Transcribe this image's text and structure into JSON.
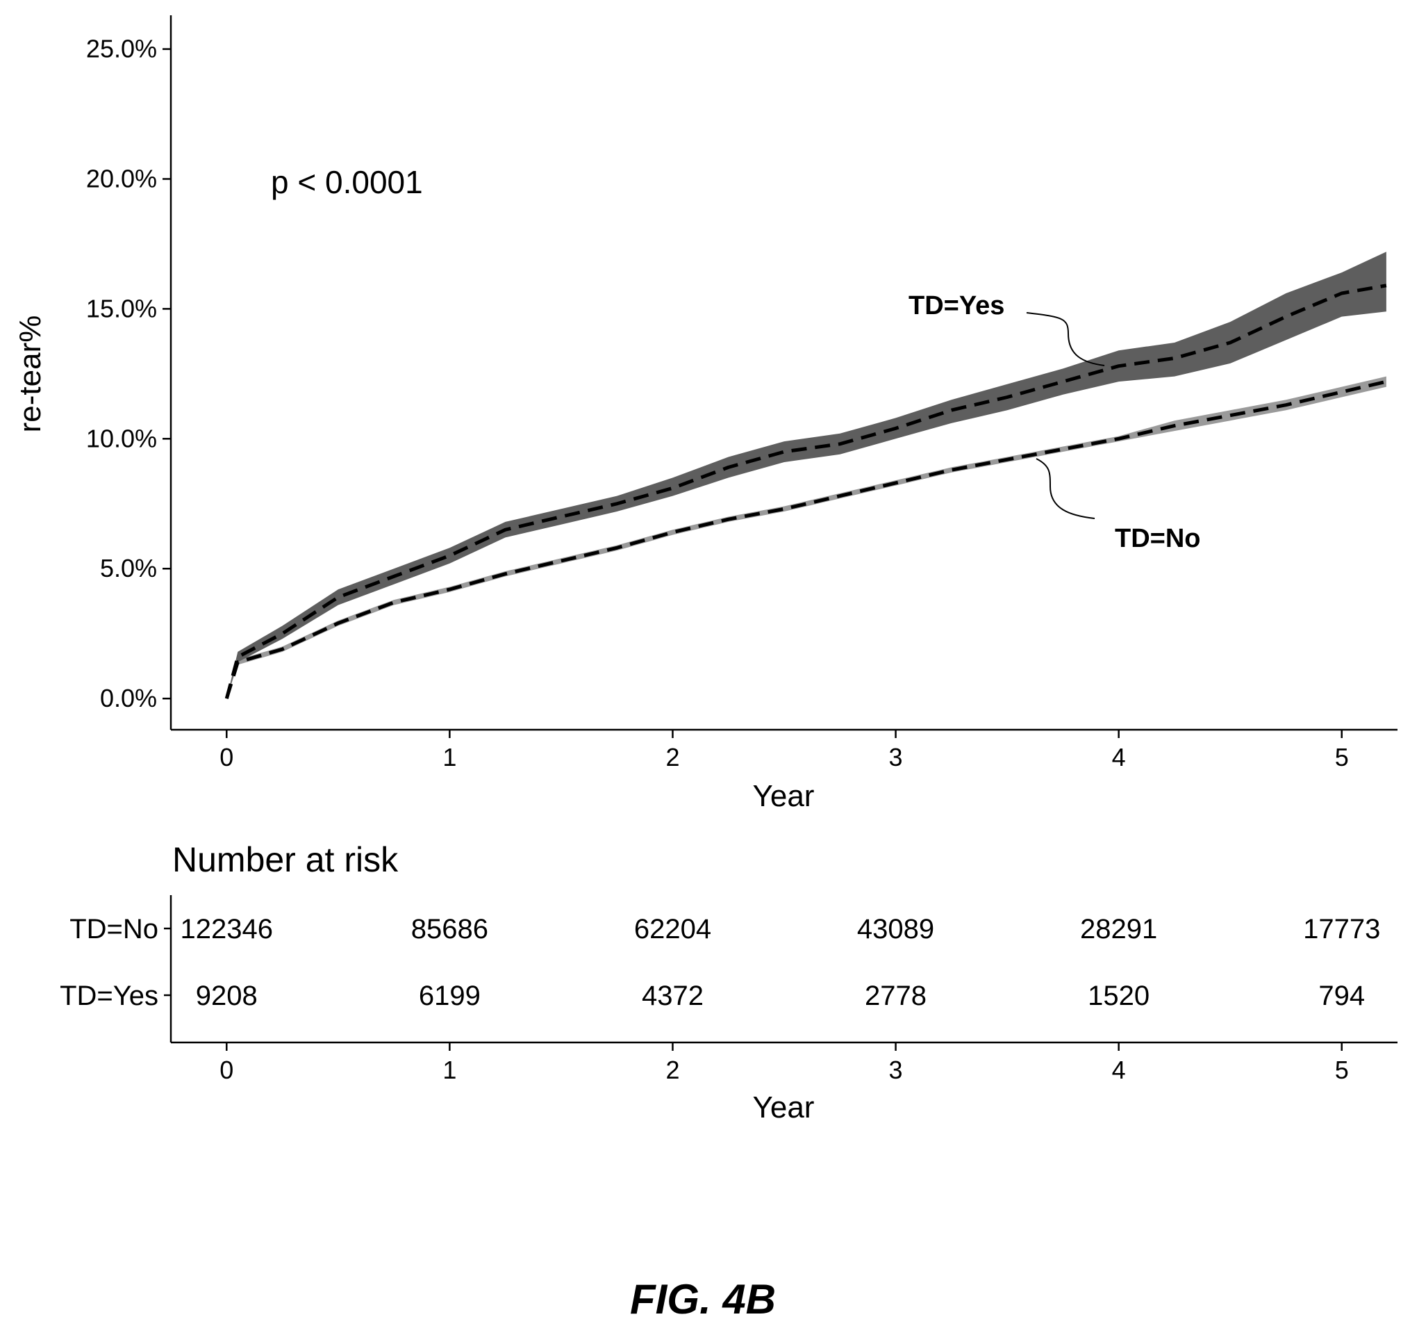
{
  "chart_data": [
    {
      "type": "line",
      "x": [
        0,
        0.05,
        0.25,
        0.5,
        0.75,
        1,
        1.25,
        1.5,
        1.75,
        2,
        2.25,
        2.5,
        2.75,
        3,
        3.25,
        3.5,
        3.75,
        4,
        4.25,
        4.5,
        4.75,
        5,
        5.2
      ],
      "series": [
        {
          "name": "TD=Yes",
          "values": [
            0.0,
            1.6,
            2.5,
            3.9,
            4.7,
            5.5,
            6.5,
            7.0,
            7.5,
            8.1,
            8.9,
            9.5,
            9.8,
            10.4,
            11.1,
            11.6,
            12.2,
            12.8,
            13.1,
            13.7,
            14.7,
            15.6,
            15.9
          ],
          "lower": [
            0.0,
            1.4,
            2.3,
            3.6,
            4.4,
            5.2,
            6.2,
            6.7,
            7.2,
            7.8,
            8.5,
            9.1,
            9.4,
            10.0,
            10.6,
            11.1,
            11.7,
            12.2,
            12.4,
            12.9,
            13.8,
            14.7,
            14.9
          ],
          "upper": [
            0.0,
            1.8,
            2.8,
            4.2,
            5.0,
            5.8,
            6.8,
            7.3,
            7.8,
            8.5,
            9.3,
            9.9,
            10.2,
            10.8,
            11.5,
            12.1,
            12.7,
            13.4,
            13.7,
            14.5,
            15.6,
            16.4,
            17.2
          ]
        },
        {
          "name": "TD=No",
          "values": [
            0.0,
            1.4,
            1.9,
            2.9,
            3.7,
            4.2,
            4.8,
            5.3,
            5.8,
            6.4,
            6.9,
            7.3,
            7.8,
            8.3,
            8.8,
            9.2,
            9.6,
            10.0,
            10.5,
            10.9,
            11.3,
            11.8,
            12.2
          ],
          "lower": [
            0.0,
            1.3,
            1.8,
            2.8,
            3.6,
            4.1,
            4.7,
            5.2,
            5.7,
            6.3,
            6.8,
            7.2,
            7.7,
            8.2,
            8.7,
            9.1,
            9.5,
            9.9,
            10.3,
            10.7,
            11.1,
            11.6,
            12.0
          ],
          "upper": [
            0.0,
            1.5,
            2.0,
            3.0,
            3.8,
            4.3,
            4.9,
            5.4,
            5.9,
            6.5,
            7.0,
            7.4,
            7.9,
            8.4,
            8.9,
            9.3,
            9.7,
            10.1,
            10.7,
            11.1,
            11.5,
            12.0,
            12.4
          ]
        }
      ],
      "xlabel": "Year",
      "ylabel": "re-tear%",
      "xlim": [
        -0.25,
        5.25
      ],
      "ylim": [
        -1.2,
        26.3
      ],
      "xticks": [
        0,
        1,
        2,
        3,
        4,
        5
      ],
      "xtick_labels": [
        "0",
        "1",
        "2",
        "3",
        "4",
        "5"
      ],
      "yticks": [
        0,
        5,
        10,
        15,
        20,
        25
      ],
      "ytick_labels": [
        "0.0%",
        "5.0%",
        "10.0%",
        "15.0%",
        "20.0%",
        "25.0%"
      ],
      "annotation": "p < 0.0001",
      "grid": false,
      "legend": "direct labels"
    },
    {
      "type": "table",
      "title": "Number at risk",
      "row_labels": [
        "TD=No",
        "TD=Yes"
      ],
      "x": [
        0,
        1,
        2,
        3,
        4,
        5
      ],
      "rows": [
        [
          "122346",
          "85686",
          "62204",
          "43089",
          "28291",
          "17773"
        ],
        [
          "9208",
          "6199",
          "4372",
          "2778",
          "1520",
          "794"
        ]
      ],
      "xlabel": "Year",
      "xtick_labels": [
        "0",
        "1",
        "2",
        "3",
        "4",
        "5"
      ]
    }
  ],
  "caption": "FIG. 4B",
  "colors": {
    "yes_band": "#5e5e5e",
    "no_band": "#9a9a9a",
    "line": "#000000"
  }
}
